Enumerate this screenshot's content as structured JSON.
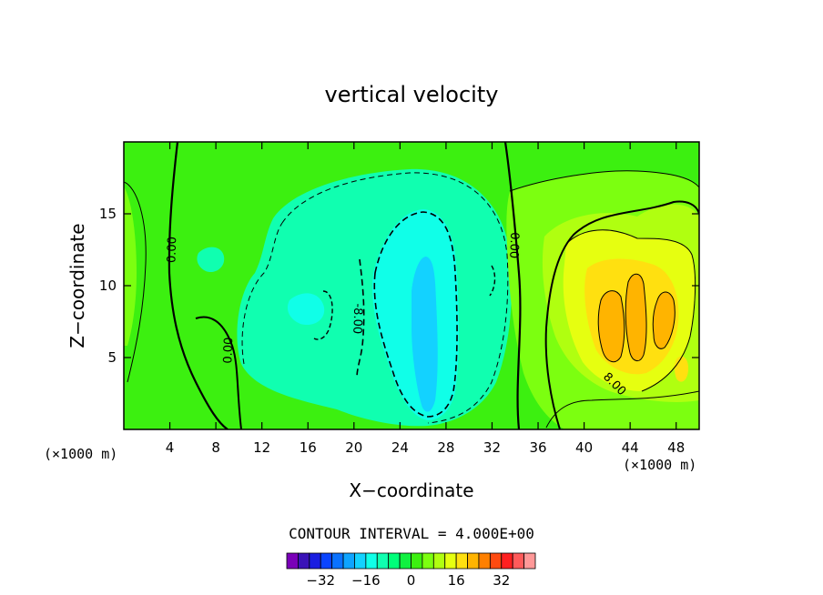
{
  "chart_data": {
    "type": "heatmap",
    "title": "vertical velocity",
    "xlabel": "X−coordinate",
    "ylabel": "Z−coordinate",
    "x_unit_label": "(×1000 m)",
    "y_unit_label": "(×1000 m)",
    "xlim": [
      0,
      50
    ],
    "ylim": [
      0,
      20
    ],
    "x_ticks": [
      4,
      8,
      12,
      16,
      20,
      24,
      28,
      32,
      36,
      40,
      44,
      48
    ],
    "y_ticks": [
      5,
      10,
      15
    ],
    "contour_interval_text": "CONTOUR INTERVAL = 4.000E+00",
    "contour_labels": [
      {
        "text": "0.00",
        "x": 4.1,
        "y": 12.5,
        "rotate": -88
      },
      {
        "text": "0.00",
        "x": 9.0,
        "y": 5.5,
        "rotate": -88
      },
      {
        "text": "-8.00",
        "x": 20.4,
        "y": 7.7,
        "rotate": 92
      },
      {
        "text": "0.00",
        "x": 34.0,
        "y": 12.8,
        "rotate": 92
      },
      {
        "text": "8.00",
        "x": 42.7,
        "y": 3.2,
        "rotate": 45
      }
    ],
    "colorbar": {
      "levels": [
        -40,
        -36,
        -32,
        -28,
        -24,
        -20,
        -16,
        -12,
        -8,
        -4,
        0,
        4,
        8,
        12,
        16,
        20,
        24,
        28,
        32,
        36
      ],
      "colors": [
        "#7a00b8",
        "#3a12b8",
        "#1a1ee0",
        "#0a44ff",
        "#0a72ff",
        "#0ea4ff",
        "#13d2ff",
        "#10ffe8",
        "#10ffb0",
        "#00ff7a",
        "#10f040",
        "#3cf010",
        "#7cff10",
        "#b0ff10",
        "#e6ff10",
        "#ffe010",
        "#ffb400",
        "#ff8000",
        "#ff4a10",
        "#ff2020",
        "#ff5a5a",
        "#ff9898"
      ],
      "tick_labels": [
        "−32",
        "−16",
        "0",
        "16",
        "32"
      ],
      "tick_values": [
        -32,
        -16,
        0,
        16,
        32
      ]
    },
    "field_features": [
      {
        "kind": "updraft",
        "center": [
          44,
          7
        ],
        "peak": 20
      },
      {
        "kind": "downdraft",
        "center": [
          26.5,
          6
        ],
        "peak": -16
      },
      {
        "kind": "weak_downdraft",
        "center": [
          15,
          7
        ],
        "peak": -8
      }
    ]
  }
}
